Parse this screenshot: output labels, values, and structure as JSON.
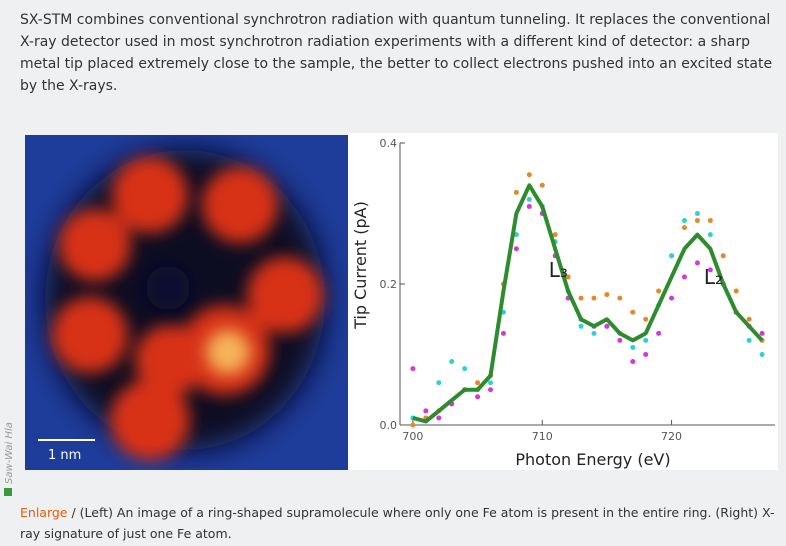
{
  "article": {
    "paragraph": "SX-STM combines conventional synchrotron radiation with quantum tunneling. It replaces the conventional X-ray detector used in most synchrotron radiation experiments with a different kind of detector: a sharp metal tip placed extremely close to the sample, the better to collect electrons pushed into an excited state by the X-rays."
  },
  "image": {
    "scale_bar": "1 nm",
    "credit": "Saw-Wai Hla"
  },
  "chart_data": {
    "type": "line",
    "ylabel": "Tip Current (pA)",
    "xlabel": "Photon Energy (eV)",
    "xlim": [
      699,
      728
    ],
    "xticks": [
      700,
      710,
      720
    ],
    "ylim": [
      0,
      0.4
    ],
    "yticks": [
      {
        "value": 0,
        "label": "0.0"
      },
      0.2,
      0.4
    ],
    "annotations": [
      {
        "text": "L₃",
        "x": 710.5,
        "y": 0.21
      },
      {
        "text": "L₂",
        "x": 722.5,
        "y": 0.2
      }
    ],
    "x": [
      700,
      701,
      702,
      703,
      704,
      705,
      706,
      707,
      708,
      709,
      710,
      711,
      712,
      713,
      714,
      715,
      716,
      717,
      718,
      719,
      720,
      721,
      722,
      723,
      724,
      725,
      726,
      727
    ],
    "series": [
      {
        "style": "line",
        "color": "#2e8b2e",
        "values": [
          0.01,
          0.005,
          0.02,
          0.035,
          0.05,
          0.05,
          0.07,
          0.19,
          0.3,
          0.34,
          0.31,
          0.25,
          0.19,
          0.15,
          0.14,
          0.15,
          0.13,
          0.12,
          0.13,
          0.17,
          0.21,
          0.25,
          0.27,
          0.25,
          0.2,
          0.16,
          0.14,
          0.12
        ]
      },
      {
        "style": "dots",
        "color": "#e08a2a",
        "values": [
          0.0,
          0.01,
          0.02,
          0.03,
          0.05,
          0.06,
          0.07,
          0.2,
          0.33,
          0.355,
          0.34,
          0.27,
          0.21,
          0.18,
          0.18,
          0.185,
          0.18,
          0.16,
          0.15,
          0.19,
          0.24,
          0.28,
          0.29,
          0.29,
          0.24,
          0.19,
          0.15,
          0.12
        ]
      },
      {
        "style": "dots",
        "color": "#2ed0d8",
        "values": [
          0.01,
          0.02,
          0.06,
          0.09,
          0.08,
          0.05,
          0.06,
          0.16,
          0.27,
          0.32,
          0.31,
          0.26,
          0.19,
          0.14,
          0.13,
          0.14,
          0.13,
          0.11,
          0.12,
          0.17,
          0.24,
          0.29,
          0.3,
          0.27,
          0.2,
          0.16,
          0.12,
          0.1
        ]
      },
      {
        "style": "dots",
        "color": "#d23ad2",
        "values": [
          0.08,
          0.02,
          0.01,
          0.03,
          0.05,
          0.04,
          0.05,
          0.13,
          0.25,
          0.31,
          0.3,
          0.24,
          0.18,
          0.15,
          0.14,
          0.14,
          0.12,
          0.09,
          0.1,
          0.13,
          0.18,
          0.21,
          0.23,
          0.22,
          0.2,
          0.16,
          0.14,
          0.13
        ]
      }
    ]
  },
  "caption": {
    "link": "Enlarge",
    "text": "/ (Left) An image of a ring-shaped supramolecule where only one Fe atom is present in the entire ring. (Right) X-ray signature of just one Fe atom."
  }
}
